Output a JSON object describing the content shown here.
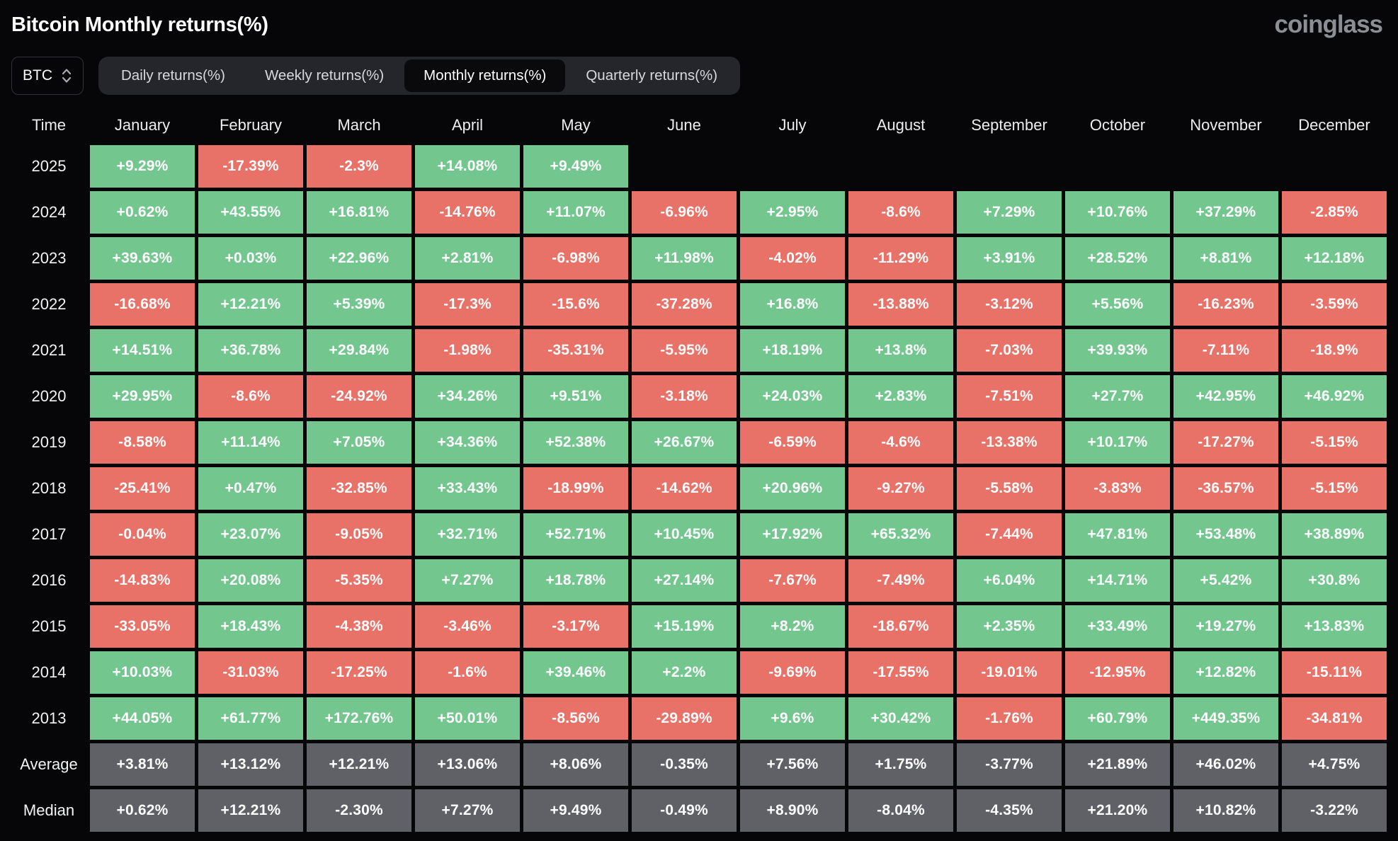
{
  "page": {
    "title": "Bitcoin Monthly returns(%)",
    "logo": "coinglass"
  },
  "controls": {
    "symbol_select": {
      "value": "BTC"
    },
    "tabs": [
      {
        "label": "Daily returns(%)",
        "active": false
      },
      {
        "label": "Weekly returns(%)",
        "active": false
      },
      {
        "label": "Monthly returns(%)",
        "active": true
      },
      {
        "label": "Quarterly returns(%)",
        "active": false
      }
    ]
  },
  "colors": {
    "positive": "#74c68f",
    "negative": "#e87168",
    "summary": "#606166",
    "background": "#060608",
    "tabbar": "#24262b",
    "active_tab": "#0a0a0c",
    "logo": "#8b8e94"
  },
  "table": {
    "time_header": "Time",
    "columns": [
      "January",
      "February",
      "March",
      "April",
      "May",
      "June",
      "July",
      "August",
      "September",
      "October",
      "November",
      "December"
    ],
    "rows": [
      {
        "label": "2025",
        "type": "year",
        "values": [
          "+9.29%",
          "-17.39%",
          "-2.3%",
          "+14.08%",
          "+9.49%",
          "",
          "",
          "",
          "",
          "",
          "",
          ""
        ]
      },
      {
        "label": "2024",
        "type": "year",
        "values": [
          "+0.62%",
          "+43.55%",
          "+16.81%",
          "-14.76%",
          "+11.07%",
          "-6.96%",
          "+2.95%",
          "-8.6%",
          "+7.29%",
          "+10.76%",
          "+37.29%",
          "-2.85%"
        ]
      },
      {
        "label": "2023",
        "type": "year",
        "values": [
          "+39.63%",
          "+0.03%",
          "+22.96%",
          "+2.81%",
          "-6.98%",
          "+11.98%",
          "-4.02%",
          "-11.29%",
          "+3.91%",
          "+28.52%",
          "+8.81%",
          "+12.18%"
        ]
      },
      {
        "label": "2022",
        "type": "year",
        "values": [
          "-16.68%",
          "+12.21%",
          "+5.39%",
          "-17.3%",
          "-15.6%",
          "-37.28%",
          "+16.8%",
          "-13.88%",
          "-3.12%",
          "+5.56%",
          "-16.23%",
          "-3.59%"
        ]
      },
      {
        "label": "2021",
        "type": "year",
        "values": [
          "+14.51%",
          "+36.78%",
          "+29.84%",
          "-1.98%",
          "-35.31%",
          "-5.95%",
          "+18.19%",
          "+13.8%",
          "-7.03%",
          "+39.93%",
          "-7.11%",
          "-18.9%"
        ]
      },
      {
        "label": "2020",
        "type": "year",
        "values": [
          "+29.95%",
          "-8.6%",
          "-24.92%",
          "+34.26%",
          "+9.51%",
          "-3.18%",
          "+24.03%",
          "+2.83%",
          "-7.51%",
          "+27.7%",
          "+42.95%",
          "+46.92%"
        ]
      },
      {
        "label": "2019",
        "type": "year",
        "values": [
          "-8.58%",
          "+11.14%",
          "+7.05%",
          "+34.36%",
          "+52.38%",
          "+26.67%",
          "-6.59%",
          "-4.6%",
          "-13.38%",
          "+10.17%",
          "-17.27%",
          "-5.15%"
        ]
      },
      {
        "label": "2018",
        "type": "year",
        "values": [
          "-25.41%",
          "+0.47%",
          "-32.85%",
          "+33.43%",
          "-18.99%",
          "-14.62%",
          "+20.96%",
          "-9.27%",
          "-5.58%",
          "-3.83%",
          "-36.57%",
          "-5.15%"
        ]
      },
      {
        "label": "2017",
        "type": "year",
        "values": [
          "-0.04%",
          "+23.07%",
          "-9.05%",
          "+32.71%",
          "+52.71%",
          "+10.45%",
          "+17.92%",
          "+65.32%",
          "-7.44%",
          "+47.81%",
          "+53.48%",
          "+38.89%"
        ]
      },
      {
        "label": "2016",
        "type": "year",
        "values": [
          "-14.83%",
          "+20.08%",
          "-5.35%",
          "+7.27%",
          "+18.78%",
          "+27.14%",
          "-7.67%",
          "-7.49%",
          "+6.04%",
          "+14.71%",
          "+5.42%",
          "+30.8%"
        ]
      },
      {
        "label": "2015",
        "type": "year",
        "values": [
          "-33.05%",
          "+18.43%",
          "-4.38%",
          "-3.46%",
          "-3.17%",
          "+15.19%",
          "+8.2%",
          "-18.67%",
          "+2.35%",
          "+33.49%",
          "+19.27%",
          "+13.83%"
        ]
      },
      {
        "label": "2014",
        "type": "year",
        "values": [
          "+10.03%",
          "-31.03%",
          "-17.25%",
          "-1.6%",
          "+39.46%",
          "+2.2%",
          "-9.69%",
          "-17.55%",
          "-19.01%",
          "-12.95%",
          "+12.82%",
          "-15.11%"
        ]
      },
      {
        "label": "2013",
        "type": "year",
        "values": [
          "+44.05%",
          "+61.77%",
          "+172.76%",
          "+50.01%",
          "-8.56%",
          "-29.89%",
          "+9.6%",
          "+30.42%",
          "-1.76%",
          "+60.79%",
          "+449.35%",
          "-34.81%"
        ]
      },
      {
        "label": "Average",
        "type": "summary",
        "values": [
          "+3.81%",
          "+13.12%",
          "+12.21%",
          "+13.06%",
          "+8.06%",
          "-0.35%",
          "+7.56%",
          "+1.75%",
          "-3.77%",
          "+21.89%",
          "+46.02%",
          "+4.75%"
        ]
      },
      {
        "label": "Median",
        "type": "summary",
        "values": [
          "+0.62%",
          "+12.21%",
          "-2.30%",
          "+7.27%",
          "+9.49%",
          "-0.49%",
          "+8.90%",
          "-8.04%",
          "-4.35%",
          "+21.20%",
          "+10.82%",
          "-3.22%"
        ]
      }
    ]
  }
}
